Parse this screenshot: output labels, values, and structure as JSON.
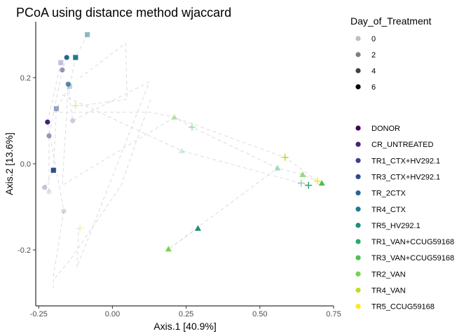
{
  "chart_data": {
    "type": "scatter",
    "title": "PCoA using distance method wjaccard",
    "xlabel": "Axis.1   [40.9%]",
    "ylabel": "Axis.2  [13.6%]",
    "xlim": [
      -0.26,
      0.75
    ],
    "ylim": [
      -0.33,
      0.33
    ],
    "xticks": [
      -0.25,
      0.0,
      0.25,
      0.5,
      0.75
    ],
    "xtick_labels": [
      "-0.25",
      "0.00",
      "0.25",
      "0.50",
      "0.75"
    ],
    "yticks": [
      -0.2,
      0.0,
      0.2
    ],
    "ytick_labels": [
      "-0.2",
      "0.0",
      "0.2"
    ],
    "grid": false,
    "legend_day_title": "Day_of_Treatment",
    "legend_day": [
      {
        "label": "0",
        "alpha": 0.25
      },
      {
        "label": "2",
        "alpha": 0.5
      },
      {
        "label": "4",
        "alpha": 0.75
      },
      {
        "label": "6",
        "alpha": 1.0
      }
    ],
    "legend_groups": [
      {
        "label": "DONOR",
        "color": "#440154"
      },
      {
        "label": "CR_UNTREATED",
        "color": "#482173"
      },
      {
        "label": "TR1_CTX+HV292.1",
        "color": "#433e85"
      },
      {
        "label": "TR3_CTX+HV292.1",
        "color": "#2c4f85"
      },
      {
        "label": "TR_2CTX",
        "color": "#25668f"
      },
      {
        "label": "TR4_CTX",
        "color": "#1f7a8c"
      },
      {
        "label": "TR5_HV292.1",
        "color": "#1f8f7a"
      },
      {
        "label": "TR1_VAN+CCUG59168",
        "color": "#29a96e"
      },
      {
        "label": "TR3_VAN+CCUG59168",
        "color": "#4cbf55"
      },
      {
        "label": "TR2_VAN",
        "color": "#7ad151"
      },
      {
        "label": "TR4_VAN",
        "color": "#b9de28"
      },
      {
        "label": "TR5_CCUG59168",
        "color": "#fde725"
      }
    ],
    "points": [
      {
        "x": -0.085,
        "y": 0.3,
        "shape": "square",
        "color": "#1f7a8c",
        "alpha": 0.5
      },
      {
        "x": -0.155,
        "y": 0.247,
        "shape": "circle",
        "color": "#25668f",
        "alpha": 1.0
      },
      {
        "x": -0.125,
        "y": 0.247,
        "shape": "square",
        "color": "#1f7a8c",
        "alpha": 1.0
      },
      {
        "x": -0.175,
        "y": 0.235,
        "shape": "square",
        "color": "#433e85",
        "alpha": 0.3
      },
      {
        "x": -0.17,
        "y": 0.218,
        "shape": "circle",
        "color": "#482173",
        "alpha": 0.5
      },
      {
        "x": -0.15,
        "y": 0.185,
        "shape": "circle",
        "color": "#25668f",
        "alpha": 0.75
      },
      {
        "x": -0.145,
        "y": 0.18,
        "shape": "square",
        "color": "#1f7a8c",
        "alpha": 0.3
      },
      {
        "x": -0.19,
        "y": 0.128,
        "shape": "square",
        "color": "#2c4f85",
        "alpha": 0.5
      },
      {
        "x": -0.125,
        "y": 0.135,
        "shape": "plus",
        "color": "#b9de28",
        "alpha": 0.5
      },
      {
        "x": -0.135,
        "y": 0.1,
        "shape": "circle",
        "color": "#433e85",
        "alpha": 0.25
      },
      {
        "x": -0.22,
        "y": 0.097,
        "shape": "circle",
        "color": "#482173",
        "alpha": 1.0
      },
      {
        "x": -0.215,
        "y": 0.065,
        "shape": "circle",
        "color": "#482173",
        "alpha": 0.5
      },
      {
        "x": -0.2,
        "y": -0.015,
        "shape": "square",
        "color": "#2c4f85",
        "alpha": 1.0
      },
      {
        "x": -0.23,
        "y": -0.055,
        "shape": "circle",
        "color": "#433e85",
        "alpha": 0.3
      },
      {
        "x": -0.215,
        "y": -0.065,
        "shape": "circle",
        "color": "#433e85",
        "alpha": 0.15
      },
      {
        "x": -0.165,
        "y": -0.11,
        "shape": "circle",
        "color": "#433e85",
        "alpha": 0.2
      },
      {
        "x": -0.11,
        "y": -0.15,
        "shape": "plus",
        "color": "#b9de28",
        "alpha": 0.3
      },
      {
        "x": 0.21,
        "y": 0.108,
        "shape": "triangle",
        "color": "#7ad151",
        "alpha": 0.5
      },
      {
        "x": 0.27,
        "y": 0.085,
        "shape": "plus",
        "color": "#4cbf55",
        "alpha": 0.5
      },
      {
        "x": 0.235,
        "y": 0.03,
        "shape": "triangle",
        "color": "#29a96e",
        "alpha": 0.2
      },
      {
        "x": 0.585,
        "y": 0.015,
        "shape": "plus",
        "color": "#b9de28",
        "alpha": 1.0
      },
      {
        "x": 0.56,
        "y": -0.01,
        "shape": "triangle",
        "color": "#29a96e",
        "alpha": 0.4
      },
      {
        "x": 0.645,
        "y": -0.025,
        "shape": "triangle",
        "color": "#7ad151",
        "alpha": 0.8
      },
      {
        "x": 0.64,
        "y": -0.045,
        "shape": "plus",
        "color": "#29a96e",
        "alpha": 0.5
      },
      {
        "x": 0.665,
        "y": -0.05,
        "shape": "plus",
        "color": "#29a96e",
        "alpha": 1.0
      },
      {
        "x": 0.695,
        "y": -0.04,
        "shape": "plus",
        "color": "#fde725",
        "alpha": 1.0
      },
      {
        "x": 0.71,
        "y": -0.045,
        "shape": "triangle",
        "color": "#4cbf55",
        "alpha": 1.0
      },
      {
        "x": 0.29,
        "y": -0.15,
        "shape": "triangle",
        "color": "#1f8f7a",
        "alpha": 1.0
      },
      {
        "x": 0.19,
        "y": -0.198,
        "shape": "triangle",
        "color": "#7ad151",
        "alpha": 1.0
      }
    ],
    "paths": [
      [
        [
          -0.085,
          0.3
        ],
        [
          -0.125,
          0.247
        ],
        [
          -0.145,
          0.18
        ],
        [
          -0.19,
          0.128
        ],
        [
          -0.2,
          -0.015
        ],
        [
          -0.23,
          -0.055
        ]
      ],
      [
        [
          -0.155,
          0.247
        ],
        [
          -0.17,
          0.218
        ],
        [
          -0.215,
          0.065
        ],
        [
          -0.215,
          -0.065
        ]
      ],
      [
        [
          -0.175,
          0.235
        ],
        [
          -0.22,
          0.097
        ],
        [
          -0.165,
          -0.11
        ],
        [
          -0.2,
          -0.26
        ],
        [
          -0.2,
          -0.29
        ]
      ],
      [
        [
          -0.15,
          0.185
        ],
        [
          -0.135,
          0.1
        ],
        [
          0.125,
          0.19
        ],
        [
          -0.12,
          -0.24
        ],
        [
          -0.115,
          -0.15
        ]
      ],
      [
        [
          -0.11,
          0.2
        ],
        [
          0.045,
          0.28
        ],
        [
          0.05,
          0.15
        ],
        [
          -0.11,
          0.135
        ]
      ],
      [
        [
          -0.2,
          0.12
        ],
        [
          0.13,
          0.12
        ],
        [
          0.21,
          0.108
        ],
        [
          0.27,
          0.085
        ],
        [
          0.56,
          -0.01
        ],
        [
          0.645,
          -0.025
        ],
        [
          0.71,
          -0.045
        ]
      ],
      [
        [
          -0.17,
          0.16
        ],
        [
          0.235,
          0.03
        ],
        [
          0.64,
          -0.045
        ],
        [
          0.665,
          -0.05
        ]
      ],
      [
        [
          0.13,
          0.15
        ],
        [
          0.03,
          -0.05
        ],
        [
          -0.14,
          -0.22
        ],
        [
          -0.2,
          -0.27
        ]
      ],
      [
        [
          -0.15,
          0.18
        ],
        [
          -0.17,
          -0.05
        ],
        [
          0.21,
          0.108
        ],
        [
          0.585,
          0.015
        ],
        [
          0.695,
          -0.04
        ]
      ],
      [
        [
          0.29,
          -0.15
        ],
        [
          0.19,
          -0.198
        ],
        [
          0.56,
          -0.01
        ]
      ]
    ]
  }
}
